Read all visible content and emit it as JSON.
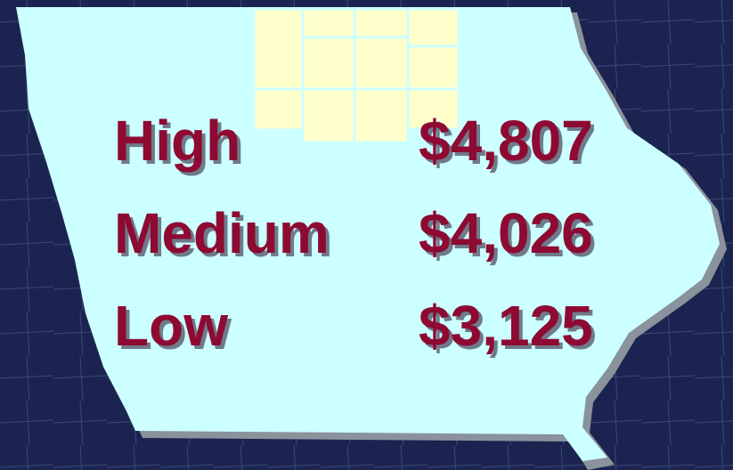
{
  "table": {
    "rows": [
      [
        "High",
        "$4,807"
      ],
      [
        "Medium",
        "$4,026"
      ],
      [
        "Low",
        "$3,125"
      ]
    ]
  }
}
